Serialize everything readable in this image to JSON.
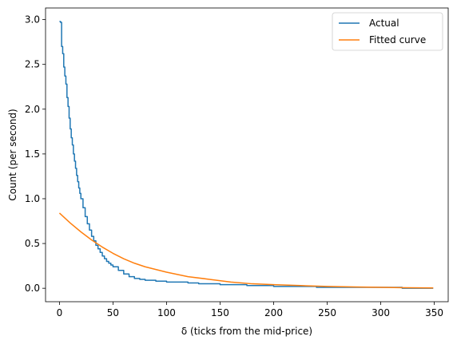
{
  "chart_data": {
    "type": "line",
    "xlabel": "δ (ticks from the mid-price)",
    "ylabel": "Count (per second)",
    "xlim": [
      -13,
      363
    ],
    "ylim": [
      -0.15,
      3.13
    ],
    "xticks": [
      0,
      50,
      100,
      150,
      200,
      250,
      300,
      350
    ],
    "xtick_labels": [
      "0",
      "50",
      "100",
      "150",
      "200",
      "250",
      "300",
      "350"
    ],
    "yticks": [
      0.0,
      0.5,
      1.0,
      1.5,
      2.0,
      2.5,
      3.0
    ],
    "ytick_labels": [
      "0.0",
      "0.5",
      "1.0",
      "1.5",
      "2.0",
      "2.5",
      "3.0"
    ],
    "grid": false,
    "legend_position": "top-right",
    "series": [
      {
        "name": "Actual",
        "color": "#1f77b4",
        "style": "step",
        "x": [
          0,
          1,
          2,
          3,
          4,
          5,
          6,
          7,
          8,
          9,
          10,
          11,
          12,
          13,
          14,
          15,
          16,
          17,
          18,
          19,
          20,
          22,
          24,
          26,
          28,
          30,
          32,
          34,
          36,
          38,
          40,
          42,
          44,
          46,
          48,
          50,
          55,
          60,
          65,
          70,
          75,
          80,
          85,
          90,
          100,
          110,
          120,
          130,
          140,
          150,
          160,
          175,
          190,
          200,
          220,
          240,
          260,
          280,
          300,
          320,
          340,
          349
        ],
        "y": [
          2.98,
          2.97,
          2.7,
          2.62,
          2.47,
          2.37,
          2.28,
          2.13,
          2.03,
          1.9,
          1.78,
          1.68,
          1.6,
          1.5,
          1.42,
          1.34,
          1.26,
          1.19,
          1.12,
          1.06,
          1.0,
          0.9,
          0.8,
          0.72,
          0.65,
          0.58,
          0.53,
          0.48,
          0.44,
          0.4,
          0.36,
          0.33,
          0.3,
          0.28,
          0.26,
          0.24,
          0.2,
          0.16,
          0.13,
          0.11,
          0.1,
          0.09,
          0.09,
          0.08,
          0.07,
          0.07,
          0.06,
          0.05,
          0.05,
          0.04,
          0.04,
          0.03,
          0.03,
          0.02,
          0.02,
          0.01,
          0.01,
          0.01,
          0.01,
          0.0,
          0.0,
          0.0
        ]
      },
      {
        "name": "Fitted curve",
        "color": "#ff7f0e",
        "style": "line",
        "x": [
          0,
          10,
          20,
          30,
          40,
          50,
          60,
          70,
          80,
          90,
          100,
          120,
          140,
          160,
          180,
          200,
          225,
          250,
          275,
          300,
          325,
          349
        ],
        "y": [
          0.84,
          0.73,
          0.63,
          0.54,
          0.46,
          0.39,
          0.33,
          0.28,
          0.24,
          0.21,
          0.18,
          0.13,
          0.1,
          0.07,
          0.05,
          0.04,
          0.03,
          0.02,
          0.015,
          0.01,
          0.006,
          0.004
        ]
      }
    ]
  }
}
